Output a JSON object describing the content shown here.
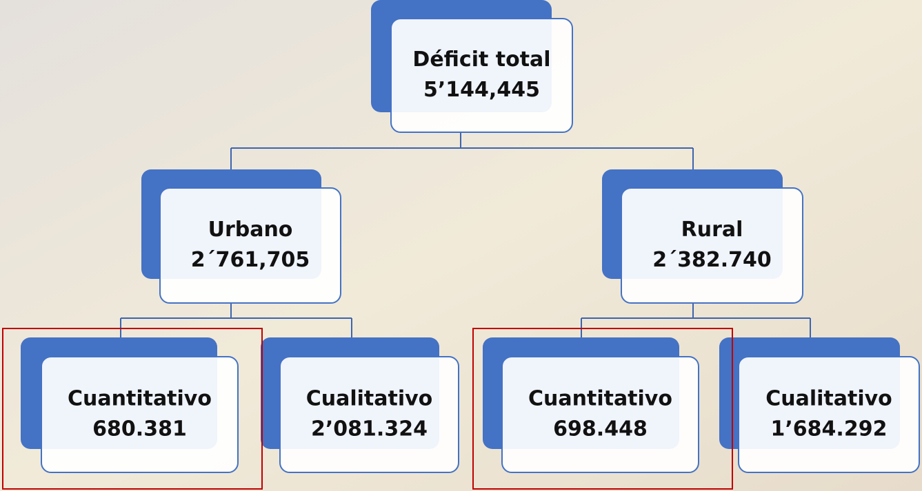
{
  "nodes": [
    {
      "label": "Déficit total",
      "value": "5’144,445"
    },
    {
      "label": "Urbano",
      "value": "2´761,705"
    },
    {
      "label": "Rural",
      "value": "2´382.740"
    },
    {
      "label": "Cuantitativo",
      "value": "680.381"
    },
    {
      "label": "Cualitativo",
      "value": "2’081.324"
    },
    {
      "label": "Cuantitativo",
      "value": "698.448"
    },
    {
      "label": "Cualitativo",
      "value": "1’684.292"
    }
  ]
}
